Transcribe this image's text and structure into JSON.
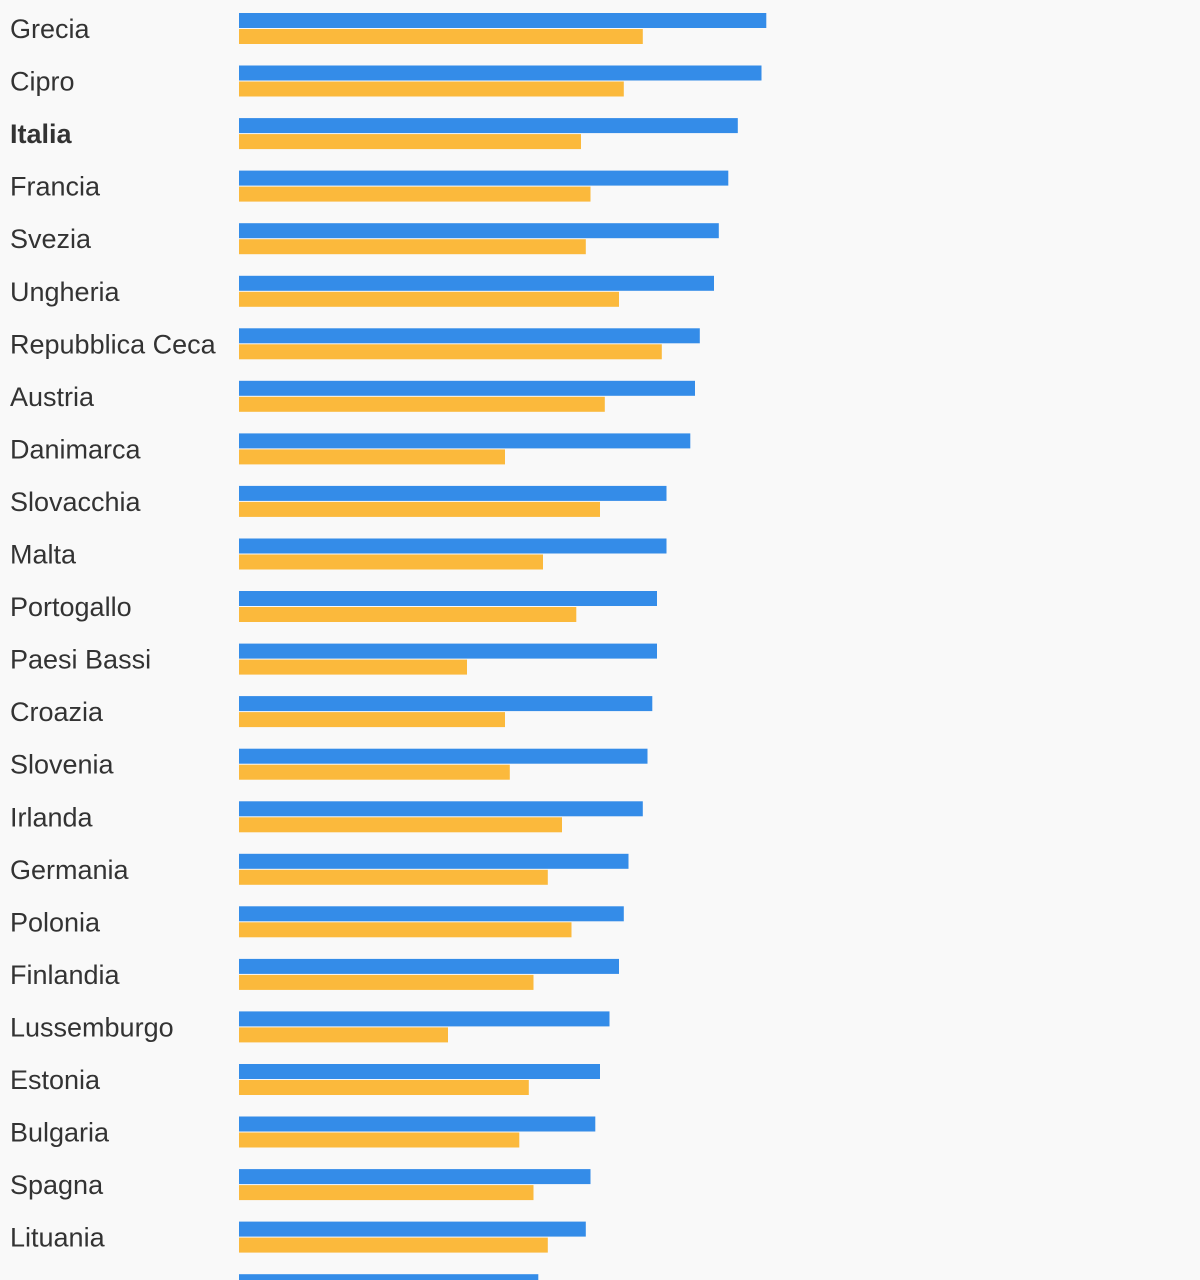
{
  "chart_data": {
    "type": "bar",
    "orientation": "horizontal",
    "title": "",
    "xlabel": "",
    "ylabel": "",
    "grid": false,
    "legend": "none",
    "xlim": [
      0,
      100
    ],
    "highlight": [
      "Italia"
    ],
    "categories": [
      "Grecia",
      "Cipro",
      "Italia",
      "Francia",
      "Svezia",
      "Ungheria",
      "Repubblica Ceca",
      "Austria",
      "Danimarca",
      "Slovacchia",
      "Malta",
      "Portogallo",
      "Paesi Bassi",
      "Croazia",
      "Slovenia",
      "Irlanda",
      "Germania",
      "Polonia",
      "Finlandia",
      "Lussemburgo",
      "Estonia",
      "Bulgaria",
      "Spagna",
      "Lituania",
      ""
    ],
    "series": [
      {
        "color": "#348ce8",
        "values": [
          55.5,
          55.0,
          52.5,
          51.5,
          50.5,
          50.0,
          48.5,
          48.0,
          47.5,
          45.0,
          45.0,
          44.0,
          44.0,
          43.5,
          43.0,
          42.5,
          41.0,
          40.5,
          40.0,
          39.0,
          38.0,
          37.5,
          37.0,
          36.5,
          31.5
        ]
      },
      {
        "color": "#fbb93c",
        "values": [
          42.5,
          40.5,
          36.0,
          37.0,
          36.5,
          40.0,
          44.5,
          38.5,
          28.0,
          38.0,
          32.0,
          35.5,
          24.0,
          28.0,
          28.5,
          34.0,
          32.5,
          35.0,
          31.0,
          22.0,
          30.5,
          29.5,
          31.0,
          32.5,
          0
        ]
      }
    ]
  }
}
